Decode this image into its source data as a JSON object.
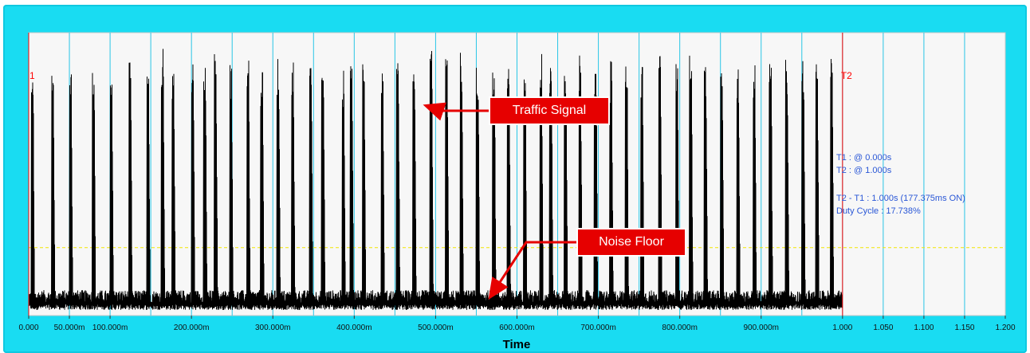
{
  "chart_data": {
    "type": "line",
    "title": "",
    "xlabel": "Time",
    "ylabel": "",
    "xlim": [
      0,
      1.2
    ],
    "x_ticks": [
      {
        "value": 0.0,
        "label": "0.000"
      },
      {
        "value": 0.05,
        "label": "50.000m"
      },
      {
        "value": 0.1,
        "label": "100.000m"
      },
      {
        "value": 0.2,
        "label": "200.000m"
      },
      {
        "value": 0.3,
        "label": "300.000m"
      },
      {
        "value": 0.4,
        "label": "400.000m"
      },
      {
        "value": 0.5,
        "label": "500.000m"
      },
      {
        "value": 0.6,
        "label": "600.000m"
      },
      {
        "value": 0.7,
        "label": "700.000m"
      },
      {
        "value": 0.8,
        "label": "800.000m"
      },
      {
        "value": 0.9,
        "label": "900.000m"
      },
      {
        "value": 1.0,
        "label": "1.000"
      },
      {
        "value": 1.05,
        "label": "1.050"
      },
      {
        "value": 1.1,
        "label": "1.100"
      },
      {
        "value": 1.15,
        "label": "1.150"
      },
      {
        "value": 1.2,
        "label": "1.200"
      }
    ],
    "gridlines_x": [
      0.05,
      0.1,
      0.15,
      0.2,
      0.25,
      0.3,
      0.35,
      0.4,
      0.45,
      0.5,
      0.55,
      0.6,
      0.65,
      0.7,
      0.75,
      0.8,
      0.85,
      0.9,
      0.95,
      1.0,
      1.05,
      1.1,
      1.15
    ],
    "grid": true,
    "threshold_line": {
      "level": 0.24,
      "color": "#f2e600"
    },
    "signal_extent": [
      0,
      1.0
    ],
    "series": [
      {
        "color": "#000000",
        "noise_floor_range": [
          0.02,
          0.09
        ],
        "pulses": [
          [
            0.003,
            0.92
          ],
          [
            0.028,
            0.9
          ],
          [
            0.05,
            0.89
          ],
          [
            0.078,
            0.91
          ],
          [
            0.1,
            0.88
          ],
          [
            0.123,
            0.9
          ],
          [
            0.145,
            0.92
          ],
          [
            0.163,
            0.97
          ],
          [
            0.176,
            0.91
          ],
          [
            0.2,
            0.9
          ],
          [
            0.215,
            0.88
          ],
          [
            0.228,
            0.93
          ],
          [
            0.247,
            0.9
          ],
          [
            0.268,
            0.91
          ],
          [
            0.285,
            0.89
          ],
          [
            0.305,
            0.91
          ],
          [
            0.323,
            0.9
          ],
          [
            0.345,
            0.92
          ],
          [
            0.36,
            0.9
          ],
          [
            0.385,
            0.89
          ],
          [
            0.395,
            0.91
          ],
          [
            0.41,
            0.93
          ],
          [
            0.433,
            0.91
          ],
          [
            0.452,
            0.92
          ],
          [
            0.472,
            0.9
          ],
          [
            0.493,
            0.94
          ],
          [
            0.512,
            0.91
          ],
          [
            0.53,
            0.93
          ],
          [
            0.55,
            0.9
          ],
          [
            0.57,
            0.92
          ],
          [
            0.588,
            0.94
          ],
          [
            0.608,
            0.91
          ],
          [
            0.628,
            0.95
          ],
          [
            0.64,
            0.92
          ],
          [
            0.658,
            0.9
          ],
          [
            0.676,
            0.93
          ],
          [
            0.695,
            0.91
          ],
          [
            0.714,
            0.9
          ],
          [
            0.733,
            0.92
          ],
          [
            0.752,
            0.91
          ],
          [
            0.774,
            0.93
          ],
          [
            0.795,
            0.9
          ],
          [
            0.812,
            0.92
          ],
          [
            0.83,
            0.91
          ],
          [
            0.85,
            0.89
          ],
          [
            0.87,
            0.9
          ],
          [
            0.89,
            0.92
          ],
          [
            0.91,
            0.93
          ],
          [
            0.93,
            0.91
          ],
          [
            0.95,
            0.92
          ],
          [
            0.967,
            0.9
          ],
          [
            0.985,
            0.95
          ]
        ]
      }
    ],
    "cursors": [
      {
        "label": "1",
        "x": 0.0,
        "color": "#ff0000"
      },
      {
        "label": "T2",
        "x": 1.0,
        "color": "#ff0000"
      }
    ],
    "annotations": [
      {
        "text": "Traffic Signal",
        "arrow_to": [
          0.49,
          0.74
        ]
      },
      {
        "text": "Noise Floor",
        "arrow_to": [
          0.568,
          0.07
        ]
      }
    ],
    "cursor_readout": [
      "T1 : @ 0.000s",
      "T2 : @ 1.000s",
      "T2 - T1 : 1.000s (177.375ms ON)",
      "Duty Cycle : 17.738%"
    ]
  },
  "colors": {
    "frame": "#19dcf2",
    "plot_background": "#f7f7f7",
    "gridline": "#29c6e6",
    "callout": "#e60000",
    "readout_text": "#2a57d6"
  }
}
